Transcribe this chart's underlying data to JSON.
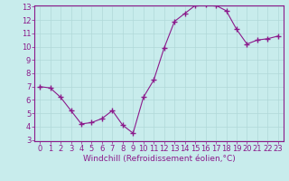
{
  "x": [
    0,
    1,
    2,
    3,
    4,
    5,
    6,
    7,
    8,
    9,
    10,
    11,
    12,
    13,
    14,
    15,
    16,
    17,
    18,
    19,
    20,
    21,
    22,
    23
  ],
  "y": [
    7.0,
    6.9,
    6.2,
    5.2,
    4.2,
    4.3,
    4.6,
    5.2,
    4.1,
    3.5,
    6.2,
    7.5,
    9.9,
    11.9,
    12.5,
    13.1,
    13.2,
    13.1,
    12.7,
    11.3,
    10.2,
    10.5,
    10.6,
    10.8
  ],
  "line_color": "#8b1a8b",
  "marker": "+",
  "marker_size": 4,
  "bg_color": "#c8ecec",
  "grid_color": "#b0d8d8",
  "xlabel": "Windchill (Refroidissement éolien,°C)",
  "xlabel_color": "#8b1a8b",
  "tick_color": "#8b1a8b",
  "ylim": [
    3,
    13
  ],
  "xlim": [
    -0.5,
    23.5
  ],
  "yticks": [
    3,
    4,
    5,
    6,
    7,
    8,
    9,
    10,
    11,
    12,
    13
  ],
  "xticks": [
    0,
    1,
    2,
    3,
    4,
    5,
    6,
    7,
    8,
    9,
    10,
    11,
    12,
    13,
    14,
    15,
    16,
    17,
    18,
    19,
    20,
    21,
    22,
    23
  ],
  "spine_color": "#8b1a8b",
  "font_size": 6,
  "xlabel_fontsize": 6.5,
  "line_width": 0.8,
  "marker_color": "#8b1a8b"
}
